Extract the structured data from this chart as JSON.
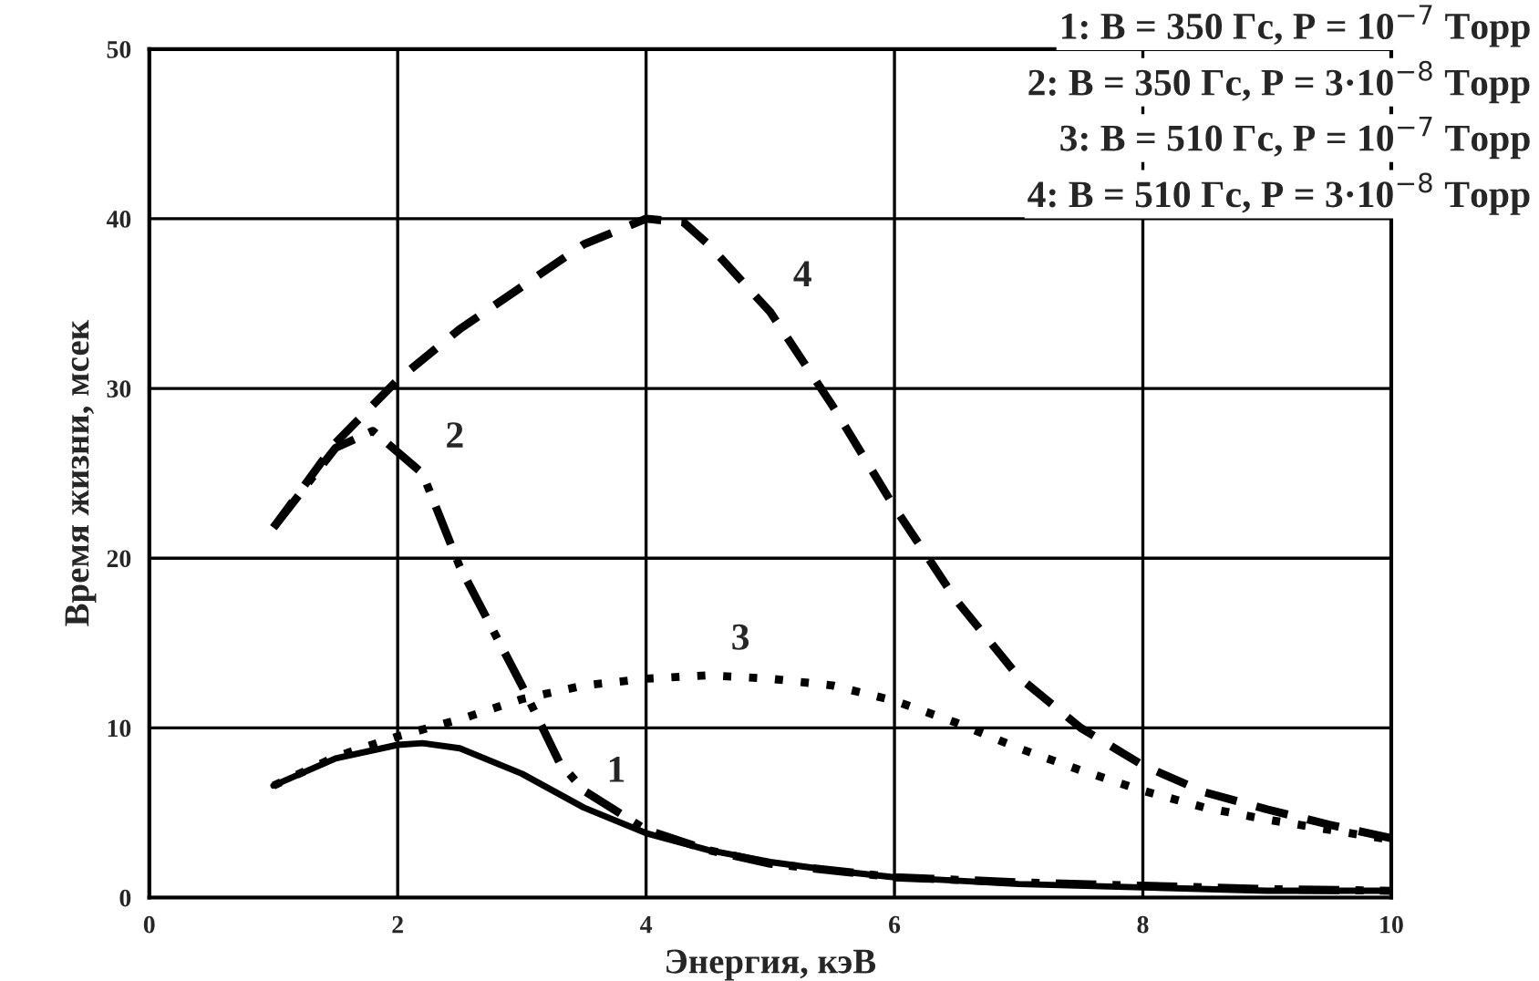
{
  "chart_data": {
    "type": "line",
    "xlabel": "Энергия, кэВ",
    "ylabel": "Время жизни, мсек",
    "xlim": [
      0,
      10
    ],
    "ylim": [
      0,
      50
    ],
    "xticks": [
      0,
      2,
      4,
      6,
      8,
      10
    ],
    "yticks": [
      0,
      10,
      20,
      30,
      40,
      50
    ],
    "grid": true,
    "series": [
      {
        "color": "#000000",
        "line_style": "solid",
        "x": [
          1,
          1.5,
          2,
          2.2,
          2.5,
          3,
          3.5,
          4,
          4.5,
          5,
          5.5,
          6,
          7,
          8,
          9,
          10
        ],
        "values": [
          6.6,
          8.2,
          9.0,
          9.1,
          8.8,
          7.3,
          5.3,
          3.8,
          2.8,
          2.1,
          1.6,
          1.2,
          0.8,
          0.6,
          0.4,
          0.4
        ]
      },
      {
        "color": "#000000",
        "line_style": "dashdot",
        "x": [
          1,
          1.5,
          1.8,
          2.2,
          2.5,
          3,
          3.3,
          3.5,
          4,
          4.5,
          5,
          6,
          7,
          8,
          9,
          10
        ],
        "values": [
          21.8,
          26.5,
          27.5,
          25,
          19.5,
          12.5,
          8,
          6.3,
          4,
          2.8,
          2.0,
          1.2,
          0.9,
          0.7,
          0.5,
          0.4
        ]
      },
      {
        "color": "#000000",
        "line_style": "dotted",
        "x": [
          1,
          1.5,
          2,
          2.5,
          3,
          3.5,
          4,
          4.5,
          5,
          5.5,
          6,
          6.5,
          7,
          7.5,
          8,
          8.5,
          9,
          9.5,
          10
        ],
        "values": [
          6.6,
          8.3,
          9.5,
          10.5,
          11.7,
          12.5,
          12.9,
          13.1,
          12.9,
          12.5,
          11.6,
          10.3,
          8.8,
          7.5,
          6.3,
          5.3,
          4.6,
          4.0,
          3.4
        ]
      },
      {
        "color": "#000000",
        "line_style": "dashed",
        "x": [
          1,
          1.5,
          2,
          2.5,
          3,
          3.5,
          4,
          4.3,
          4.5,
          5,
          5.5,
          6,
          6.5,
          7,
          7.5,
          8,
          8.5,
          9,
          9.5,
          10
        ],
        "values": [
          21.8,
          26.8,
          30.5,
          33.5,
          36,
          38.5,
          40,
          39.8,
          38.5,
          34.5,
          29,
          23,
          17.5,
          13,
          10,
          7.8,
          6.2,
          5.2,
          4.3,
          3.5
        ]
      }
    ],
    "annotations": [
      {
        "text": "1",
        "x": 3.5,
        "y": 5.3
      },
      {
        "text": "2",
        "x": 2.2,
        "y": 25
      },
      {
        "text": "3",
        "x": 4.5,
        "y": 13.1
      },
      {
        "text": "4",
        "x": 5,
        "y": 34.5
      },
      "1: B = 350 Гс, P = 10$^{−7}$ Торр",
      "2: B = 350 Гс, P = 3·10$^{−8}$ Торр",
      "3: B = 510 Гс, P = 10$^{−7}$ Торр",
      "4: B = 510 Гс, P = 3·10$^{−8}$ Торр"
    ]
  }
}
